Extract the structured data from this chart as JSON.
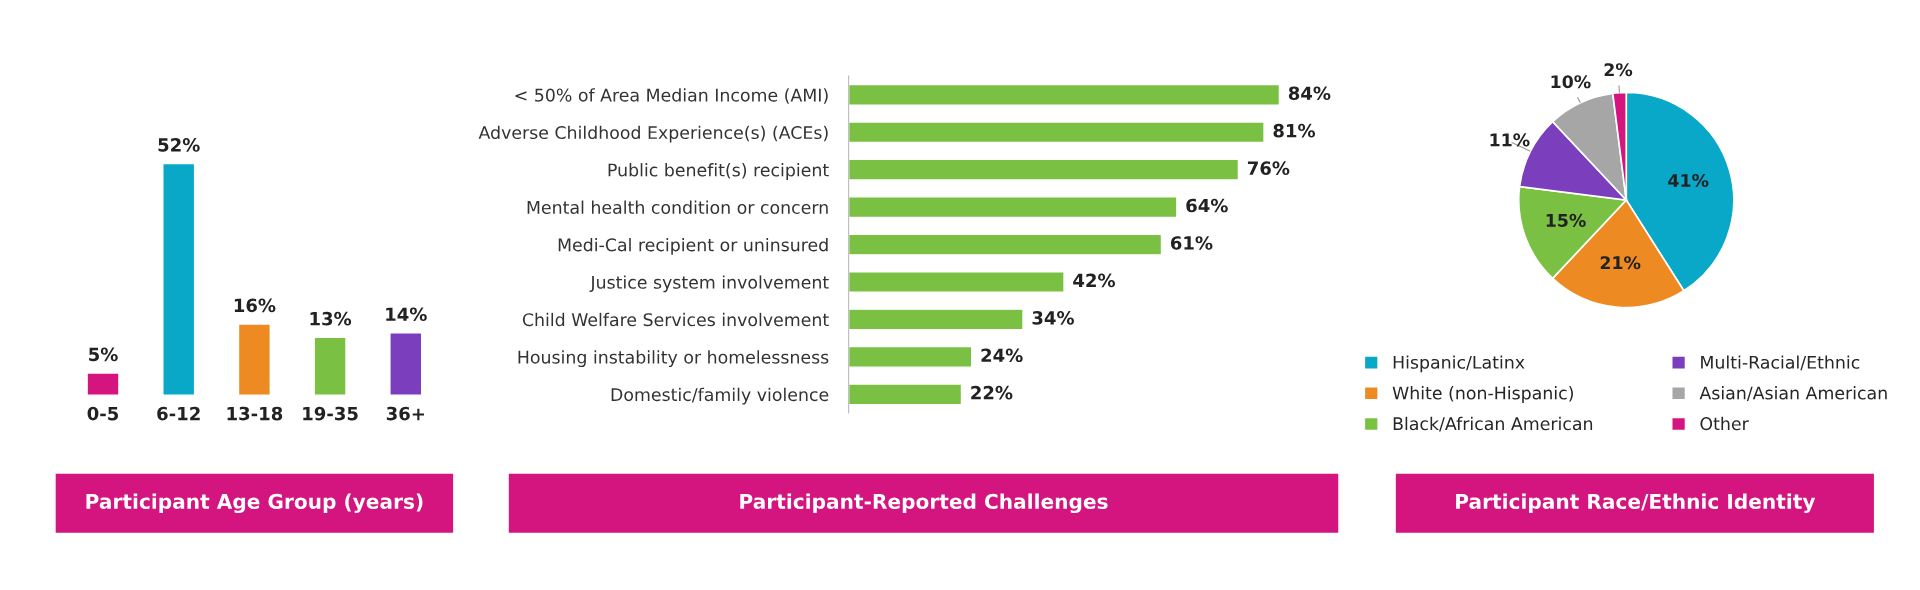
{
  "chart_data": [
    {
      "type": "bar",
      "title": "Participant Age Group (years)",
      "categories": [
        "0-5",
        "6-12",
        "13-18",
        "19-35",
        "36+"
      ],
      "values": [
        5,
        52,
        16,
        13,
        14
      ],
      "colors": [
        "#d4147f",
        "#0aa8c8",
        "#ee8a22",
        "#7ac143",
        "#7b3fbe"
      ],
      "value_labels": [
        "5%",
        "52%",
        "16%",
        "13%",
        "14%"
      ]
    },
    {
      "type": "bar",
      "orientation": "horizontal",
      "title": "Participant-Reported Challenges",
      "categories": [
        "< 50% of Area Median Income (AMI)",
        "Adverse Childhood Experience(s) (ACEs)",
        "Public benefit(s) recipient",
        "Mental health condition or concern",
        "Medi-Cal recipient or uninsured",
        "Justice system involvement",
        "Child Welfare Services involvement",
        "Housing instability or homelessness",
        "Domestic/family violence"
      ],
      "values": [
        84,
        81,
        76,
        64,
        61,
        42,
        34,
        24,
        22
      ],
      "color": "#7ac143",
      "value_labels": [
        "84%",
        "81%",
        "76%",
        "64%",
        "61%",
        "42%",
        "34%",
        "24%",
        "22%"
      ]
    },
    {
      "type": "pie",
      "title": "Participant Race/Ethnic Identity",
      "categories": [
        "Hispanic/Latinx",
        "White (non-Hispanic)",
        "Black/African American",
        "Multi-Racial/Ethnic",
        "Asian/Asian American",
        "Other"
      ],
      "values": [
        41,
        21,
        15,
        11,
        10,
        2
      ],
      "colors": [
        "#0aa8c8",
        "#ee8a22",
        "#7ac143",
        "#7b3fbe",
        "#a6a6a6",
        "#d4147f"
      ],
      "value_labels": [
        "41%",
        "21%",
        "15%",
        "11%",
        "10%",
        "2%"
      ],
      "legend": "bottom"
    }
  ]
}
